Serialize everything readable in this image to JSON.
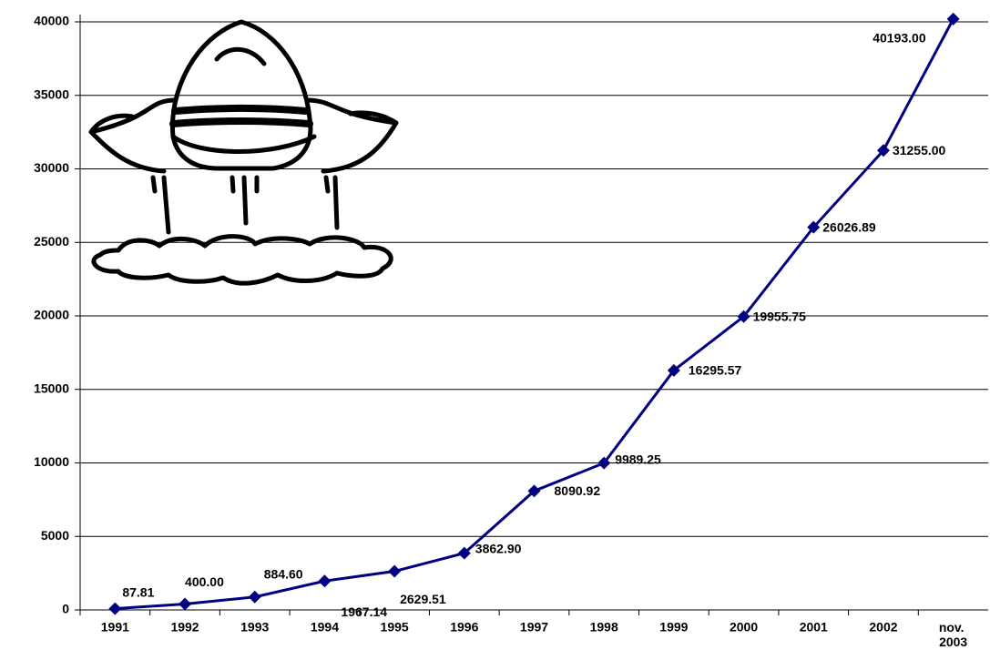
{
  "chart_data": {
    "type": "line",
    "categories": [
      "1991",
      "1992",
      "1993",
      "1994",
      "1995",
      "1996",
      "1997",
      "1998",
      "1999",
      "2000",
      "2001",
      "2002",
      "nov. 2003"
    ],
    "series": [
      {
        "color": "#000080",
        "values": [
          87.81,
          400,
          884.6,
          1967.14,
          2629.51,
          3862.9,
          8090.92,
          9989.25,
          16295.57,
          19955.75,
          26026.89,
          31255,
          40193
        ],
        "value_labels": [
          "87.81",
          "400.00",
          "884.60",
          "1967.14",
          "2629.51",
          "3862.90",
          "8090.92",
          "9989.25",
          "16295.57",
          "19955.75",
          "26026.89",
          "31255.00",
          "40193.00"
        ]
      }
    ],
    "ylim": [
      0,
      40000
    ],
    "yticks": [
      0,
      5000,
      10000,
      15000,
      20000,
      25000,
      30000,
      35000,
      40000
    ],
    "grid": true
  }
}
